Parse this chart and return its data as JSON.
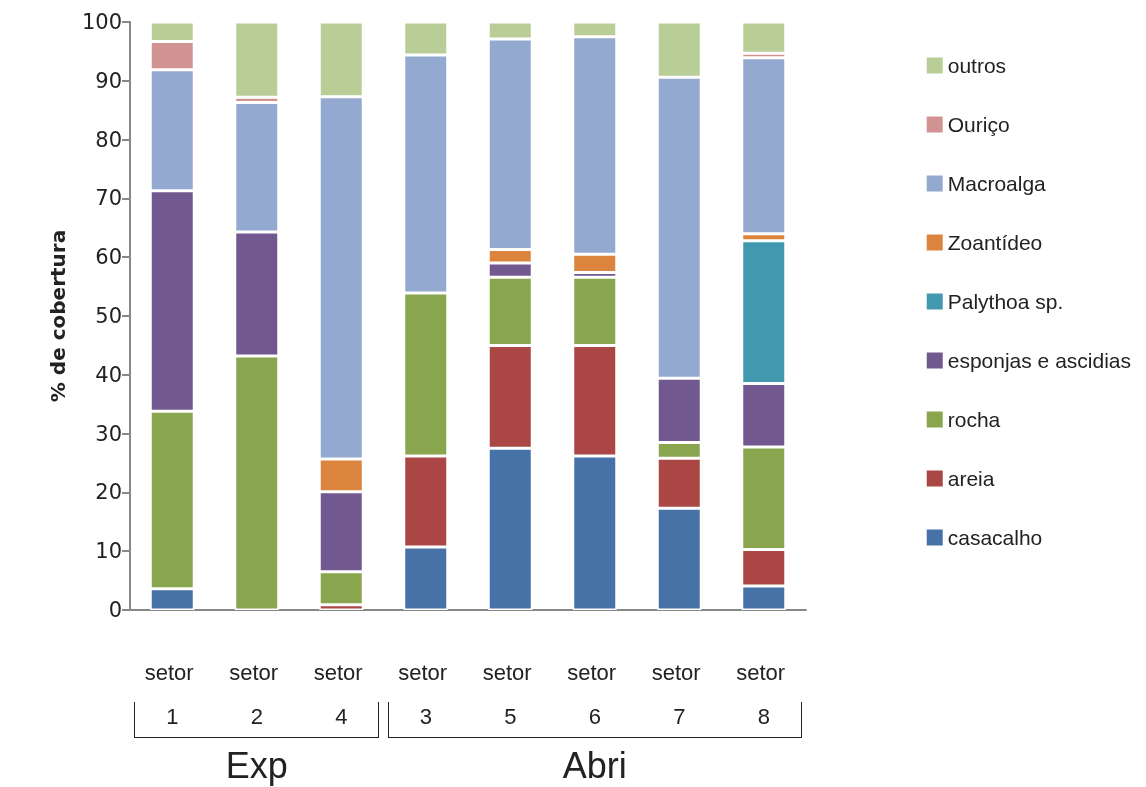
{
  "chart_data": {
    "type": "bar",
    "stacked": true,
    "ylabel": "% de cobertura",
    "categories": [
      "setor 1",
      "setor 2",
      "setor 4",
      "setor 3",
      "setor 5",
      "setor 6",
      "setor 7",
      "setor 8"
    ],
    "series": [
      {
        "name": "casacalho",
        "color": "#4672a8",
        "values": [
          3.6,
          0,
          0,
          10.7,
          27.5,
          26.2,
          17.3,
          4.1
        ]
      },
      {
        "name": "areia",
        "color": "#aa4643",
        "values": [
          0,
          0,
          0.9,
          15.5,
          17.5,
          18.8,
          8.5,
          6.2
        ]
      },
      {
        "name": "rocha",
        "color": "#89a54e",
        "values": [
          30.2,
          43.2,
          5.6,
          27.7,
          11.6,
          11.6,
          2.7,
          17.4
        ]
      },
      {
        "name": "esponjas e ascidias",
        "color": "#71588f",
        "values": [
          37.5,
          21.1,
          13.6,
          0,
          2.4,
          0.8,
          10.9,
          10.8
        ]
      },
      {
        "name": "Palythoa sp.",
        "color": "#4198af",
        "values": [
          0,
          0,
          0,
          0,
          0,
          0,
          0,
          24.3
        ]
      },
      {
        "name": "Zoantídeo",
        "color": "#db843d",
        "values": [
          0,
          0,
          5.6,
          0,
          2.3,
          3.1,
          0,
          1.2
        ]
      },
      {
        "name": "Macroalga",
        "color": "#93a9cf",
        "values": [
          20.6,
          22.0,
          61.6,
          40.5,
          35.8,
          37.0,
          51.2,
          29.9
        ]
      },
      {
        "name": "Ouriço",
        "color": "#d19392",
        "values": [
          4.8,
          0.9,
          0,
          0,
          0,
          0,
          0,
          0.8
        ]
      },
      {
        "name": "outros",
        "color": "#b9cd96",
        "values": [
          3.3,
          12.8,
          12.7,
          5.6,
          2.9,
          2.5,
          9.4,
          5.3
        ]
      }
    ],
    "ylim": [
      0,
      100
    ],
    "yticks": [
      0,
      10,
      20,
      30,
      40,
      50,
      60,
      70,
      80,
      90,
      100
    ],
    "grid": false,
    "legend": "right",
    "annotations": [
      "Exp",
      "Abri"
    ]
  }
}
